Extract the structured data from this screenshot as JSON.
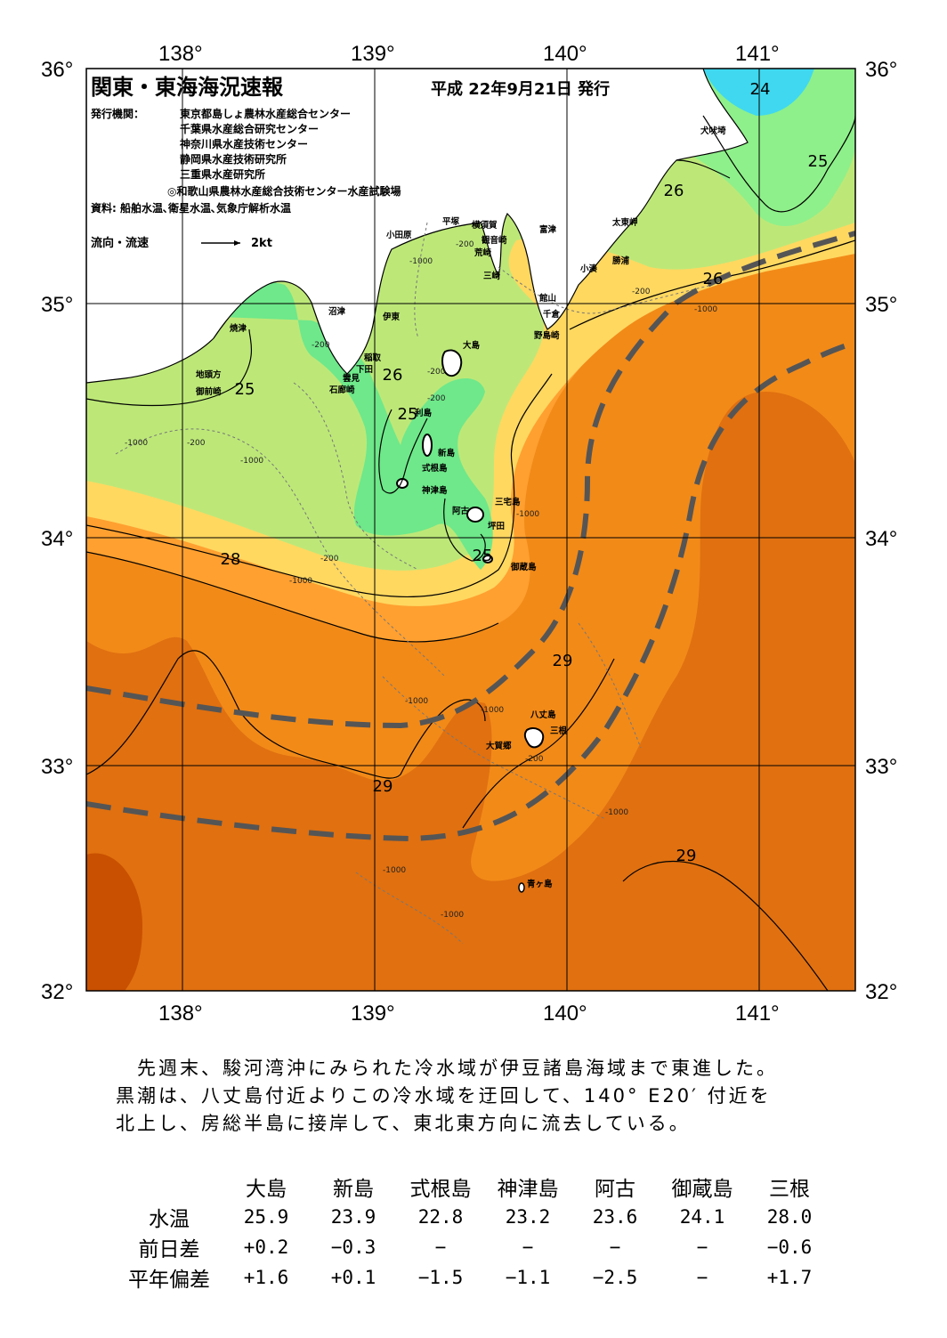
{
  "title": "関東・東海海況速報",
  "issue_date": "平成 22年9月21日 発行",
  "publishers_label": "発行機関：",
  "publishers": [
    "東京都島しょ農林水産総合センター",
    "千葉県水産総合研究センター",
    "神奈川県水産技術センター",
    "静岡県水産技術研究所",
    "三重県水産研究所",
    "◎和歌山県農林水産総合技術センター水産試験場"
  ],
  "sources": "資料: 船舶水温､衛星水温､気象庁解析水温",
  "current_legend": {
    "label": "流向・流速",
    "scale": "2kt"
  },
  "axes": {
    "lon_top": [
      "138°",
      "139°",
      "140°",
      "141°"
    ],
    "lon_bottom": [
      "138°",
      "139°",
      "140°",
      "141°"
    ],
    "lat_left": [
      "36°",
      "35°",
      "34°",
      "33°",
      "32°"
    ],
    "lat_right": [
      "36°",
      "35°",
      "34°",
      "33°",
      "32°"
    ]
  },
  "place_names": {
    "inubosaki": "犬吠埼",
    "taitozaki": "太東岬",
    "katsuura": "勝浦",
    "kominato": "小湊",
    "futtsu": "富津",
    "tateyama": "館山",
    "chikura": "千倉",
    "nojimazaki": "野島崎",
    "yokosuka": "横須賀",
    "kannonzaki": "観音崎",
    "arasaki": "荒崎",
    "misaki": "三崎",
    "hiratsuka": "平塚",
    "odawara": "小田原",
    "ito": "伊東",
    "numazu": "沼津",
    "yaizu": "焼津",
    "jitokata": "地頭方",
    "omaezaki": "御前崎",
    "inatori": "稲取",
    "shimoda": "下田",
    "kumomi": "雲見",
    "irozaki": "石廊崎",
    "oshima": "大島",
    "toshima": "利島",
    "niijima": "新島",
    "shikinejima": "式根島",
    "kozushima": "神津島",
    "miyakejima": "三宅島",
    "ako": "阿古",
    "tsubota": "坪田",
    "mikurajima": "御蔵島",
    "hachijojima": "八丈島",
    "mitsune": "三根",
    "okago": "大賀郷",
    "aogashima": "青ヶ島"
  },
  "isotherm_labels": [
    "24",
    "25",
    "26",
    "26",
    "25",
    "26",
    "25",
    "25",
    "28",
    "29",
    "29",
    "29"
  ],
  "depth_labels": [
    "-200",
    "-1000"
  ],
  "colors": {
    "t24": "#3fd8f0",
    "t25": "#6ee88a",
    "t26": "#bde878",
    "t27": "#ffd860",
    "t28": "#ffa030",
    "t29": "#f28a18",
    "t29b": "#e07010",
    "t30": "#c85000",
    "kuroshio": "#555555"
  },
  "summary": [
    "先週末、駿河湾沖にみられた冷水域が伊豆諸島海域まで東進した。",
    "黒潮は、八丈島付近よりこの冷水域を迂回して、140° E20′ 付近を",
    "北上し、房総半島に接岸して、東北東方向に流去している。"
  ],
  "table": {
    "columns": [
      "大島",
      "新島",
      "式根島",
      "神津島",
      "阿古",
      "御蔵島",
      "三根"
    ],
    "rows": [
      {
        "label": "水温",
        "values": [
          "25.9",
          "23.9",
          "22.8",
          "23.2",
          "23.6",
          "24.1",
          "28.0"
        ]
      },
      {
        "label": "前日差",
        "values": [
          "+0.2",
          "−0.3",
          "−",
          "−",
          "−",
          "−",
          "−0.6"
        ]
      },
      {
        "label": "平年偏差",
        "values": [
          "+1.6",
          "+0.1",
          "−1.5",
          "−1.1",
          "−2.5",
          "−",
          "+1.7"
        ]
      }
    ]
  }
}
